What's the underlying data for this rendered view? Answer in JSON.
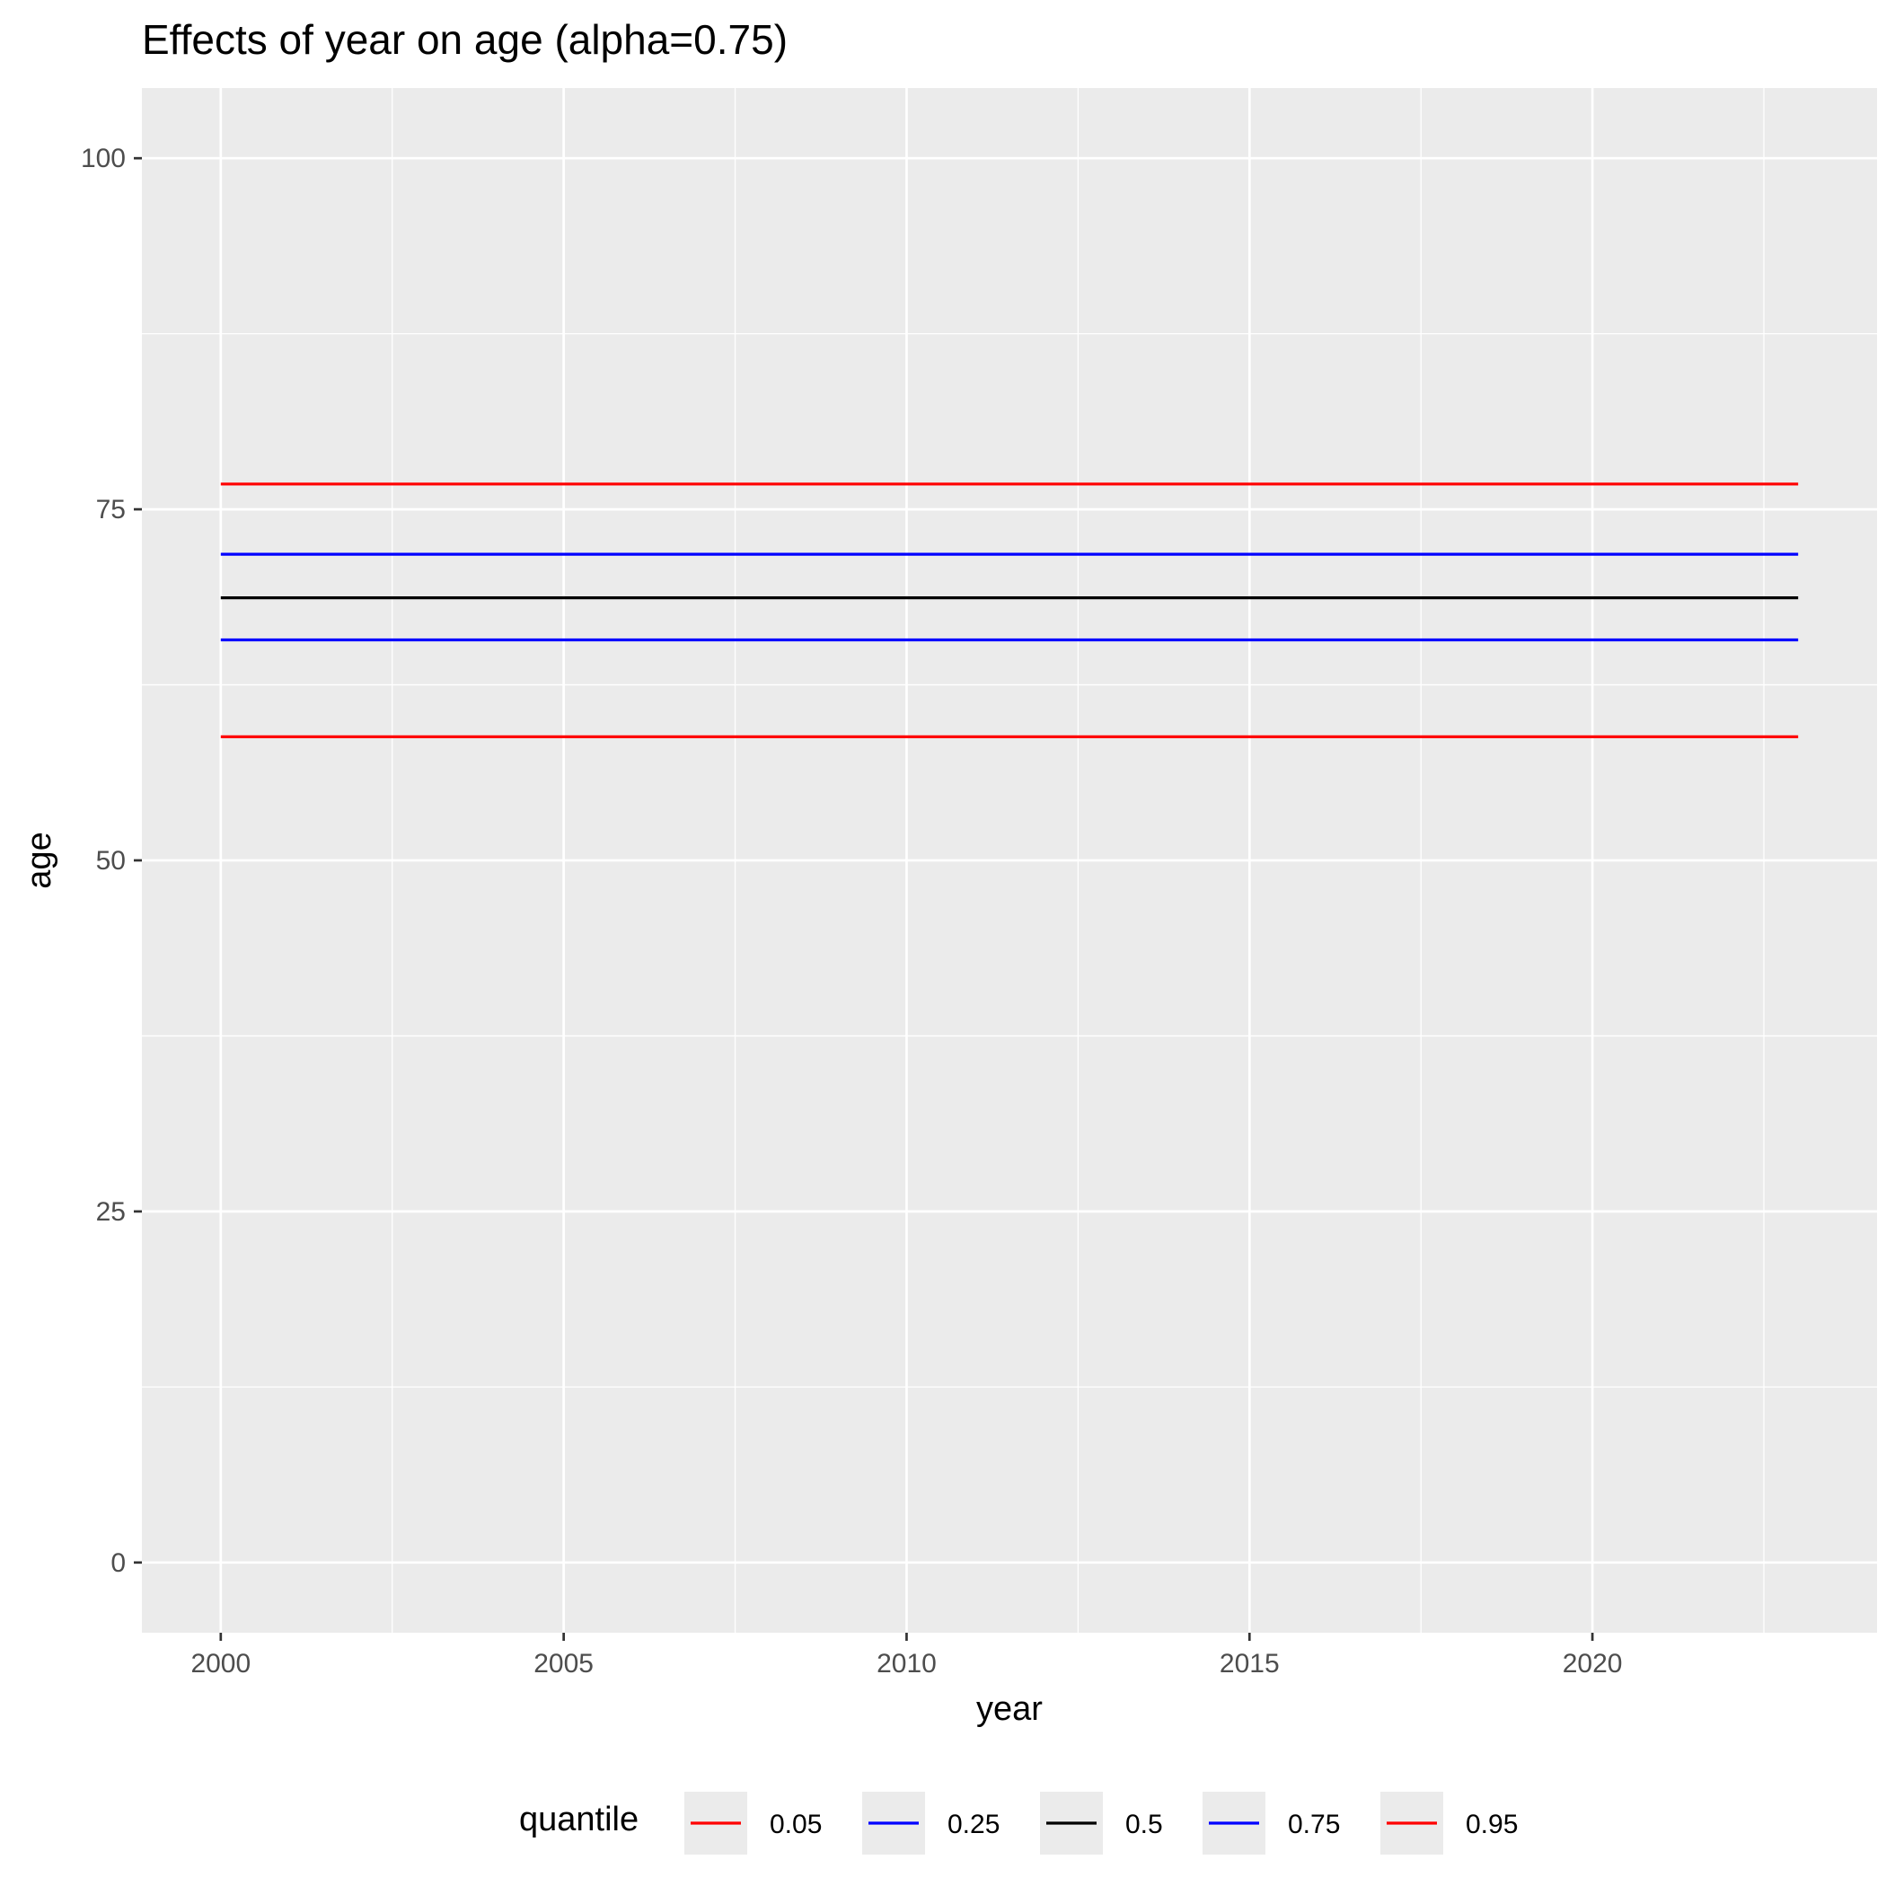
{
  "chart_data": {
    "type": "line",
    "title": "Effects of year on age (alpha=0.75)",
    "xlabel": "year",
    "ylabel": "age",
    "xlim": [
      1998.85,
      2024.15
    ],
    "ylim": [
      -5,
      105
    ],
    "x_ticks": [
      2000,
      2005,
      2010,
      2015,
      2020
    ],
    "y_ticks": [
      0,
      25,
      50,
      75,
      100
    ],
    "x": [
      2000,
      2023
    ],
    "grid": true,
    "legend": {
      "title": "quantile",
      "placement": "bottom"
    },
    "series": [
      {
        "name": "0.05",
        "color": "#ff0000",
        "values": [
          58.8,
          58.8
        ]
      },
      {
        "name": "0.25",
        "color": "#0000ff",
        "values": [
          65.7,
          65.7
        ]
      },
      {
        "name": "0.5",
        "color": "#000000",
        "values": [
          68.7,
          68.7
        ]
      },
      {
        "name": "0.75",
        "color": "#0000ff",
        "values": [
          71.8,
          71.8
        ]
      },
      {
        "name": "0.95",
        "color": "#ff0000",
        "values": [
          76.8,
          76.8
        ]
      }
    ],
    "colors": {
      "panel": "#ebebeb",
      "grid": "#ffffff",
      "tick_text": "#4d4d4d",
      "tick_mark": "#333333"
    }
  }
}
